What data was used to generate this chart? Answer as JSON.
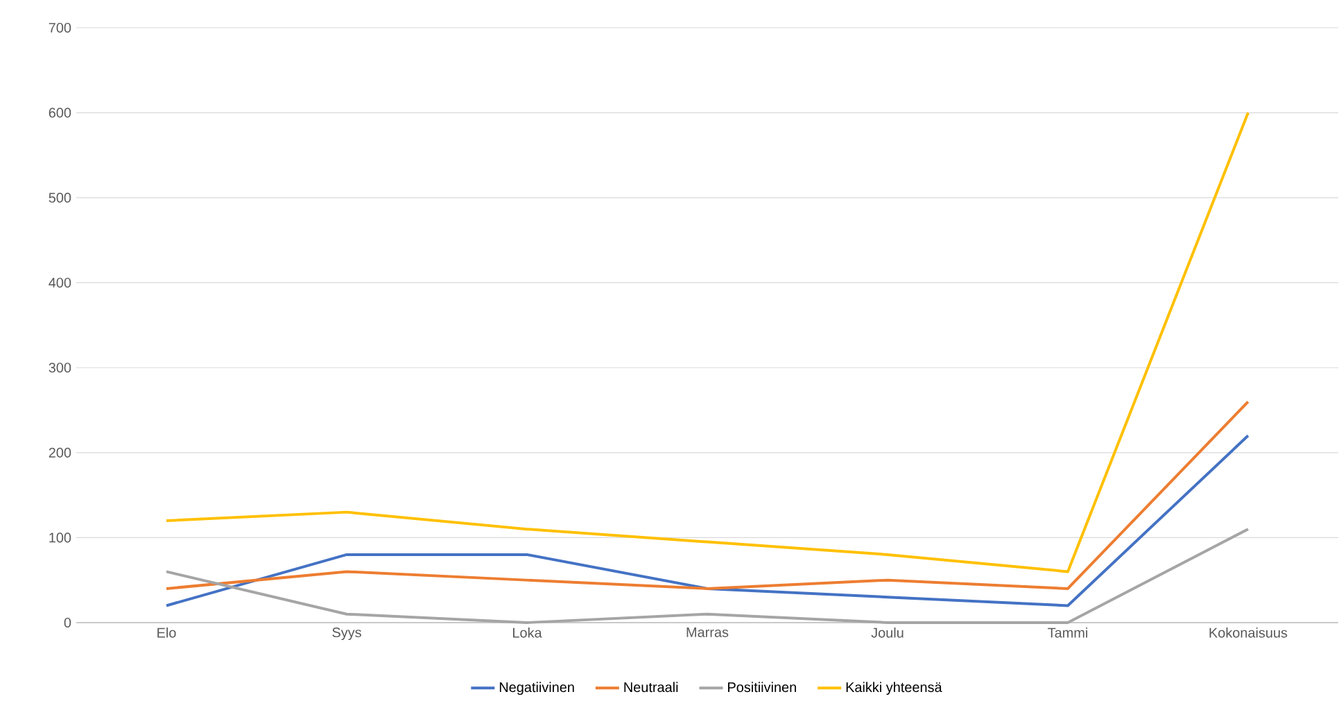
{
  "chart_data": {
    "type": "line",
    "categories": [
      "Elo",
      "Syys",
      "Loka",
      "Marras",
      "Joulu",
      "Tammi",
      "Kokonaisuus"
    ],
    "series": [
      {
        "name": "Negatiivinen",
        "color": "#4472c4",
        "values": [
          20,
          80,
          80,
          40,
          30,
          20,
          220
        ]
      },
      {
        "name": "Neutraali",
        "color": "#ed7d31",
        "values": [
          40,
          60,
          50,
          40,
          50,
          40,
          260
        ]
      },
      {
        "name": "Positiivinen",
        "color": "#a5a5a5",
        "values": [
          60,
          10,
          0,
          10,
          0,
          0,
          110
        ]
      },
      {
        "name": "Kaikki yhteensä",
        "color": "#ffc000",
        "values": [
          120,
          130,
          110,
          95,
          80,
          60,
          600
        ]
      }
    ],
    "ylim": [
      0,
      700
    ],
    "yticks": [
      0,
      100,
      200,
      300,
      400,
      500,
      600,
      700
    ],
    "grid": "y",
    "legend": "bottom",
    "marker": "none",
    "line_style": "solid"
  }
}
